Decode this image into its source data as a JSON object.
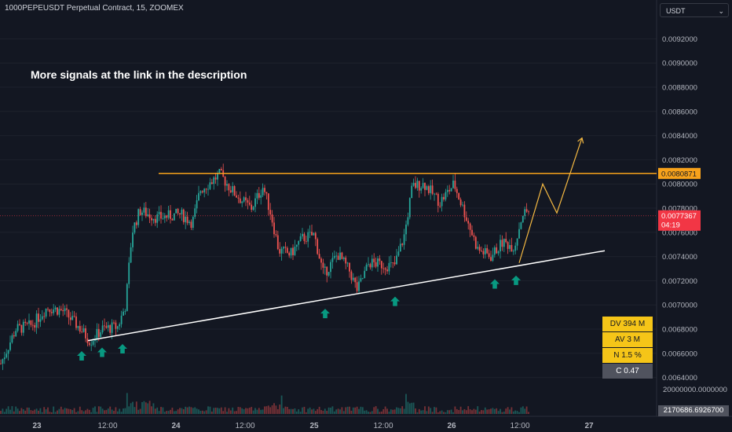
{
  "header": {
    "title": "1000PEPEUSDT Perpetual Contract, 15, ZOOMEX",
    "currency_label": "USDT"
  },
  "annotation_text": "More signals at the link in the description",
  "stats": [
    {
      "label": "DV 394 M",
      "style": "gold"
    },
    {
      "label": "AV 3 M",
      "style": "gold"
    },
    {
      "label": "N 1.5 %",
      "style": "gold"
    },
    {
      "label": "C  0.47",
      "style": "dark"
    }
  ],
  "colors": {
    "background": "#131722",
    "up": "#26a69a",
    "down": "#ef5350",
    "resistance": "#f7a21b",
    "support": "#ffffff",
    "projection": "#f5b942",
    "signal_arrow": "#089981",
    "price_label": "#f23645"
  },
  "chart_data": {
    "type": "candlestick",
    "instrument": "1000PEPEUSDT Perpetual Contract",
    "timeframe": "15",
    "exchange": "ZOOMEX",
    "ylim": [
      0.0063,
      0.0093
    ],
    "y_ticks": [
      {
        "value": 0.0092,
        "label": "0.0092000"
      },
      {
        "value": 0.009,
        "label": "0.0090000"
      },
      {
        "value": 0.0088,
        "label": "0.0088000"
      },
      {
        "value": 0.0086,
        "label": "0.0086000"
      },
      {
        "value": 0.0084,
        "label": "0.0084000"
      },
      {
        "value": 0.0082,
        "label": "0.0082000"
      },
      {
        "value": 0.008,
        "label": "0.0080000"
      },
      {
        "value": 0.0078,
        "label": "0.0078000"
      },
      {
        "value": 0.0076,
        "label": "0.0076000"
      },
      {
        "value": 0.0074,
        "label": "0.0074000"
      },
      {
        "value": 0.0072,
        "label": "0.0072000"
      },
      {
        "value": 0.007,
        "label": "0.0070000"
      },
      {
        "value": 0.0068,
        "label": "0.0068000"
      },
      {
        "value": 0.0066,
        "label": "0.0066000"
      },
      {
        "value": 0.0064,
        "label": "0.0064000"
      }
    ],
    "x_ticks": [
      "23",
      "12:00",
      "24",
      "12:00",
      "25",
      "12:00",
      "26",
      "12:00",
      "27"
    ],
    "price_path": [
      [
        0,
        0.0065
      ],
      [
        20,
        0.0068
      ],
      [
        40,
        0.00683
      ],
      [
        60,
        0.00698
      ],
      [
        80,
        0.00695
      ],
      [
        100,
        0.00682
      ],
      [
        115,
        0.0067
      ],
      [
        130,
        0.0068
      ],
      [
        150,
        0.00682
      ],
      [
        160,
        0.007
      ],
      [
        168,
        0.0076
      ],
      [
        178,
        0.00778
      ],
      [
        200,
        0.00772
      ],
      [
        230,
        0.00775
      ],
      [
        245,
        0.00768
      ],
      [
        255,
        0.00795
      ],
      [
        265,
        0.008
      ],
      [
        280,
        0.00808
      ],
      [
        295,
        0.00795
      ],
      [
        310,
        0.00785
      ],
      [
        320,
        0.0078
      ],
      [
        335,
        0.00798
      ],
      [
        345,
        0.00775
      ],
      [
        355,
        0.00745
      ],
      [
        370,
        0.00742
      ],
      [
        385,
        0.00755
      ],
      [
        400,
        0.00758
      ],
      [
        412,
        0.00725
      ],
      [
        430,
        0.00742
      ],
      [
        445,
        0.00728
      ],
      [
        455,
        0.00712
      ],
      [
        470,
        0.00735
      ],
      [
        490,
        0.00733
      ],
      [
        502,
        0.00732
      ],
      [
        515,
        0.00758
      ],
      [
        525,
        0.00798
      ],
      [
        540,
        0.008
      ],
      [
        560,
        0.00785
      ],
      [
        578,
        0.008
      ],
      [
        595,
        0.0077
      ],
      [
        608,
        0.00746
      ],
      [
        625,
        0.0074
      ],
      [
        640,
        0.00752
      ],
      [
        655,
        0.00748
      ],
      [
        665,
        0.00775
      ],
      [
        673,
        0.00778
      ]
    ],
    "resistance_level": {
      "value": 0.0080871,
      "label": "0.0080871"
    },
    "support_line": {
      "from": {
        "x": 112,
        "y": 0.006705
      },
      "to": {
        "x": 770,
        "y": 0.007448
      }
    },
    "projection": [
      {
        "x": 661,
        "y": 0.007347
      },
      {
        "x": 691,
        "y": 0.008
      },
      {
        "x": 709,
        "y": 0.00776
      },
      {
        "x": 741,
        "y": 0.00838
      }
    ],
    "signal_arrows_x": [
      104,
      130,
      156,
      414,
      503,
      630,
      657
    ],
    "current_price": {
      "value": 0.0077367,
      "label": "0.0077367",
      "countdown": "04:19"
    },
    "volume": {
      "scale_label": "20000000.0000000",
      "last_label": "2170686.6926700"
    }
  }
}
